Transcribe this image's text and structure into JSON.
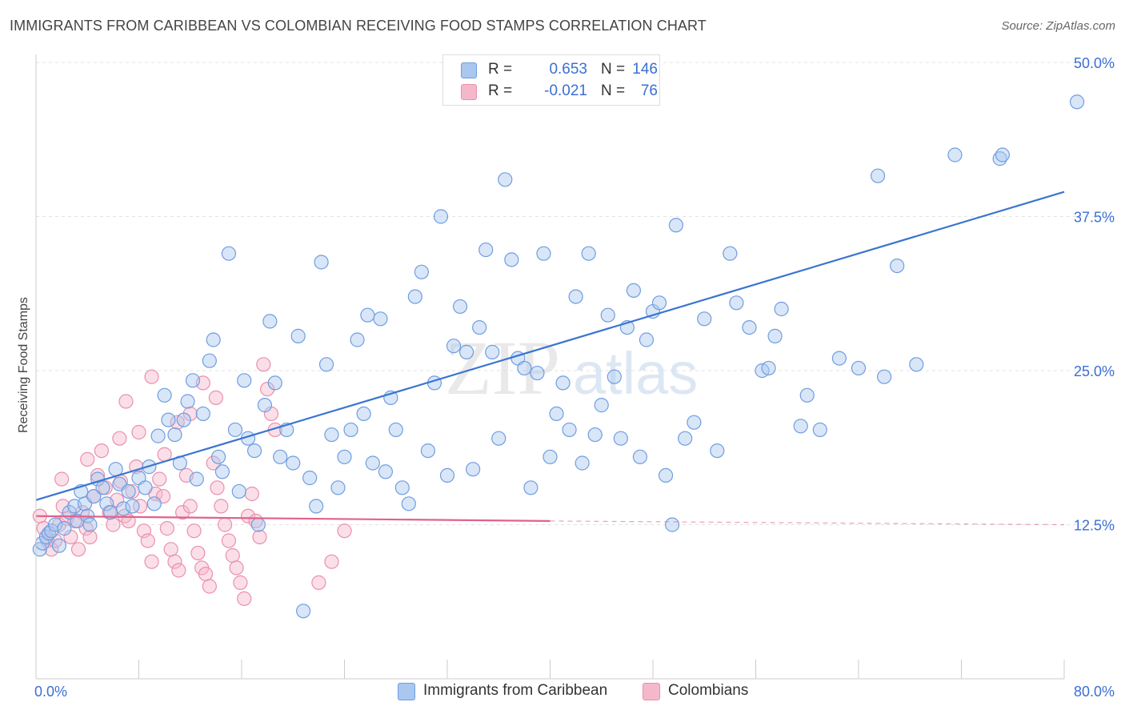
{
  "title": "IMMIGRANTS FROM CARIBBEAN VS COLOMBIAN RECEIVING FOOD STAMPS CORRELATION CHART",
  "source": "Source: ZipAtlas.com",
  "watermark": {
    "zip": "ZIP",
    "atlas": "atlas"
  },
  "legend": {
    "series1": {
      "r_label": "R =",
      "r_value": "0.653",
      "n_label": "N =",
      "n_value": "146"
    },
    "series2": {
      "r_label": "R =",
      "r_value": "-0.021",
      "n_label": "N =",
      "n_value": "76"
    }
  },
  "colors": {
    "blue_fill": "#a9c7ef",
    "blue_stroke": "#6f9ee0",
    "blue_line": "#3a75d0",
    "pink_fill": "#f5b8cb",
    "pink_stroke": "#ec8fac",
    "pink_line": "#e0628a",
    "grid": "#e3e3e3",
    "axis_text": "#3b6fd4"
  },
  "chart_data": {
    "type": "scatter",
    "title": "IMMIGRANTS FROM CARIBBEAN VS COLOMBIAN RECEIVING FOOD STAMPS CORRELATION CHART",
    "xlabel": "",
    "ylabel": "Receiving Food Stamps",
    "xlim": [
      0,
      80
    ],
    "ylim": [
      0,
      50
    ],
    "x_tick_labels": [
      "0.0%",
      "80.0%"
    ],
    "y_tick_labels": [
      "12.5%",
      "25.0%",
      "37.5%",
      "50.0%"
    ],
    "y_ticks": [
      12.5,
      25.0,
      37.5,
      50.0
    ],
    "grid": true,
    "legend_position": "top-center",
    "series": [
      {
        "name": "Immigrants from Caribbean",
        "color": "#a9c7ef",
        "R": 0.653,
        "N": 146,
        "trend": {
          "x": [
            0,
            80
          ],
          "y": [
            14.5,
            39.5
          ]
        },
        "points": [
          [
            0.3,
            10.5
          ],
          [
            0.5,
            11.0
          ],
          [
            0.8,
            11.5
          ],
          [
            1.0,
            11.8
          ],
          [
            1.2,
            12.0
          ],
          [
            1.5,
            12.5
          ],
          [
            1.8,
            10.8
          ],
          [
            2.2,
            12.2
          ],
          [
            2.6,
            13.5
          ],
          [
            3.0,
            14.0
          ],
          [
            3.2,
            12.8
          ],
          [
            3.5,
            15.2
          ],
          [
            3.8,
            14.2
          ],
          [
            4.0,
            13.2
          ],
          [
            4.2,
            12.5
          ],
          [
            4.5,
            14.8
          ],
          [
            4.8,
            16.2
          ],
          [
            5.2,
            15.5
          ],
          [
            5.5,
            14.2
          ],
          [
            5.8,
            13.5
          ],
          [
            6.2,
            17.0
          ],
          [
            6.5,
            15.8
          ],
          [
            6.8,
            13.8
          ],
          [
            7.2,
            15.2
          ],
          [
            7.5,
            14.0
          ],
          [
            8.0,
            16.3
          ],
          [
            8.5,
            15.5
          ],
          [
            8.8,
            17.2
          ],
          [
            9.2,
            14.2
          ],
          [
            9.5,
            19.7
          ],
          [
            10.0,
            23.0
          ],
          [
            10.3,
            21.0
          ],
          [
            10.8,
            19.8
          ],
          [
            11.2,
            17.5
          ],
          [
            11.5,
            21.0
          ],
          [
            11.8,
            22.5
          ],
          [
            12.2,
            24.2
          ],
          [
            12.5,
            16.2
          ],
          [
            13.0,
            21.5
          ],
          [
            13.5,
            25.8
          ],
          [
            13.8,
            27.5
          ],
          [
            14.2,
            18.0
          ],
          [
            14.5,
            16.8
          ],
          [
            15.0,
            34.5
          ],
          [
            15.5,
            20.2
          ],
          [
            15.8,
            15.2
          ],
          [
            16.2,
            24.2
          ],
          [
            16.5,
            19.5
          ],
          [
            17.0,
            18.5
          ],
          [
            17.3,
            12.5
          ],
          [
            17.8,
            22.2
          ],
          [
            18.2,
            29.0
          ],
          [
            18.6,
            24.0
          ],
          [
            19.0,
            18.0
          ],
          [
            19.5,
            20.2
          ],
          [
            20.0,
            17.5
          ],
          [
            20.4,
            27.8
          ],
          [
            20.8,
            5.5
          ],
          [
            21.3,
            16.3
          ],
          [
            21.8,
            14.0
          ],
          [
            22.2,
            33.8
          ],
          [
            22.6,
            25.5
          ],
          [
            23.0,
            19.8
          ],
          [
            23.5,
            15.5
          ],
          [
            24.0,
            18.0
          ],
          [
            24.5,
            20.2
          ],
          [
            25.0,
            27.5
          ],
          [
            25.5,
            21.5
          ],
          [
            25.8,
            29.5
          ],
          [
            26.2,
            17.5
          ],
          [
            26.8,
            29.2
          ],
          [
            27.2,
            16.8
          ],
          [
            27.6,
            22.8
          ],
          [
            28.0,
            20.2
          ],
          [
            28.5,
            15.5
          ],
          [
            29.0,
            14.2
          ],
          [
            29.5,
            31.0
          ],
          [
            30.0,
            33.0
          ],
          [
            30.5,
            18.5
          ],
          [
            31.0,
            24.0
          ],
          [
            31.5,
            37.5
          ],
          [
            32.0,
            16.5
          ],
          [
            32.5,
            27.0
          ],
          [
            33.0,
            30.2
          ],
          [
            33.5,
            26.5
          ],
          [
            34.0,
            17.0
          ],
          [
            34.5,
            28.5
          ],
          [
            35.0,
            34.8
          ],
          [
            35.5,
            26.5
          ],
          [
            36.0,
            19.5
          ],
          [
            36.5,
            40.5
          ],
          [
            37.0,
            34.0
          ],
          [
            37.5,
            26.0
          ],
          [
            38.0,
            25.2
          ],
          [
            38.5,
            15.5
          ],
          [
            39.0,
            24.8
          ],
          [
            39.5,
            34.5
          ],
          [
            40.0,
            18.0
          ],
          [
            40.5,
            21.5
          ],
          [
            41.0,
            24.0
          ],
          [
            41.5,
            20.2
          ],
          [
            42.0,
            31.0
          ],
          [
            42.5,
            17.5
          ],
          [
            43.0,
            34.5
          ],
          [
            43.5,
            19.8
          ],
          [
            44.0,
            22.2
          ],
          [
            44.5,
            29.5
          ],
          [
            45.0,
            24.5
          ],
          [
            45.5,
            19.5
          ],
          [
            46.0,
            28.5
          ],
          [
            46.5,
            31.5
          ],
          [
            47.0,
            18.0
          ],
          [
            47.5,
            27.5
          ],
          [
            48.0,
            29.8
          ],
          [
            48.5,
            30.5
          ],
          [
            49.0,
            16.5
          ],
          [
            49.5,
            12.5
          ],
          [
            49.8,
            36.8
          ],
          [
            50.5,
            19.5
          ],
          [
            51.2,
            20.8
          ],
          [
            52.0,
            29.2
          ],
          [
            53.0,
            18.5
          ],
          [
            54.0,
            34.5
          ],
          [
            54.5,
            30.5
          ],
          [
            55.5,
            28.5
          ],
          [
            56.5,
            25.0
          ],
          [
            57.0,
            25.2
          ],
          [
            57.5,
            27.8
          ],
          [
            58.0,
            30.0
          ],
          [
            59.5,
            20.5
          ],
          [
            60.0,
            23.0
          ],
          [
            61.0,
            20.2
          ],
          [
            62.5,
            26.0
          ],
          [
            64.0,
            25.2
          ],
          [
            65.5,
            40.8
          ],
          [
            66.0,
            24.5
          ],
          [
            67.0,
            33.5
          ],
          [
            68.5,
            25.5
          ],
          [
            71.5,
            42.5
          ],
          [
            75.0,
            42.2
          ],
          [
            75.2,
            42.5
          ],
          [
            81.0,
            46.8
          ]
        ]
      },
      {
        "name": "Colombians",
        "color": "#f5b8cb",
        "R": -0.021,
        "N": 76,
        "trend": {
          "x": [
            0,
            40
          ],
          "y": [
            13.2,
            12.8
          ]
        },
        "trend_dashed": {
          "x": [
            40,
            80
          ],
          "y": [
            12.8,
            12.5
          ]
        },
        "points": [
          [
            0.3,
            13.2
          ],
          [
            0.6,
            12.2
          ],
          [
            0.9,
            11.2
          ],
          [
            1.2,
            10.5
          ],
          [
            1.5,
            11.2
          ],
          [
            1.8,
            12.5
          ],
          [
            2.1,
            14.0
          ],
          [
            2.4,
            13.0
          ],
          [
            2.7,
            11.5
          ],
          [
            3.0,
            12.8
          ],
          [
            3.3,
            10.5
          ],
          [
            3.6,
            13.5
          ],
          [
            3.9,
            12.2
          ],
          [
            4.2,
            11.5
          ],
          [
            4.5,
            14.8
          ],
          [
            4.8,
            16.5
          ],
          [
            5.1,
            18.5
          ],
          [
            5.4,
            15.5
          ],
          [
            5.7,
            13.5
          ],
          [
            6.0,
            12.5
          ],
          [
            6.3,
            14.5
          ],
          [
            6.6,
            16.0
          ],
          [
            6.9,
            13.2
          ],
          [
            7.2,
            12.8
          ],
          [
            7.5,
            15.2
          ],
          [
            7.8,
            17.2
          ],
          [
            8.1,
            14.0
          ],
          [
            8.4,
            12.0
          ],
          [
            8.7,
            11.2
          ],
          [
            9.0,
            9.5
          ],
          [
            9.3,
            15.0
          ],
          [
            9.6,
            16.2
          ],
          [
            9.9,
            14.8
          ],
          [
            10.2,
            12.2
          ],
          [
            10.5,
            10.5
          ],
          [
            10.8,
            9.5
          ],
          [
            11.1,
            8.8
          ],
          [
            11.4,
            13.5
          ],
          [
            11.7,
            16.5
          ],
          [
            12.0,
            14.0
          ],
          [
            12.3,
            12.0
          ],
          [
            12.6,
            10.2
          ],
          [
            12.9,
            9.0
          ],
          [
            13.2,
            8.5
          ],
          [
            13.5,
            7.5
          ],
          [
            13.8,
            17.5
          ],
          [
            14.1,
            15.5
          ],
          [
            14.4,
            14.0
          ],
          [
            14.7,
            12.5
          ],
          [
            15.0,
            11.2
          ],
          [
            15.3,
            10.0
          ],
          [
            15.6,
            9.0
          ],
          [
            15.9,
            7.8
          ],
          [
            16.2,
            6.5
          ],
          [
            16.5,
            13.2
          ],
          [
            16.8,
            15.0
          ],
          [
            17.1,
            12.8
          ],
          [
            17.4,
            11.5
          ],
          [
            17.7,
            25.5
          ],
          [
            18.0,
            23.5
          ],
          [
            18.3,
            21.5
          ],
          [
            18.6,
            20.2
          ],
          [
            2.0,
            16.2
          ],
          [
            4.0,
            17.8
          ],
          [
            6.5,
            19.5
          ],
          [
            7.0,
            22.5
          ],
          [
            8.0,
            20.0
          ],
          [
            9.0,
            24.5
          ],
          [
            10.0,
            18.2
          ],
          [
            11.0,
            20.8
          ],
          [
            12.0,
            21.5
          ],
          [
            13.0,
            24.0
          ],
          [
            14.0,
            22.8
          ],
          [
            22.0,
            7.8
          ],
          [
            23.0,
            9.5
          ],
          [
            24.0,
            12.0
          ]
        ]
      }
    ]
  },
  "bottom_legend": {
    "item1": "Immigrants from Caribbean",
    "item2": "Colombians"
  }
}
